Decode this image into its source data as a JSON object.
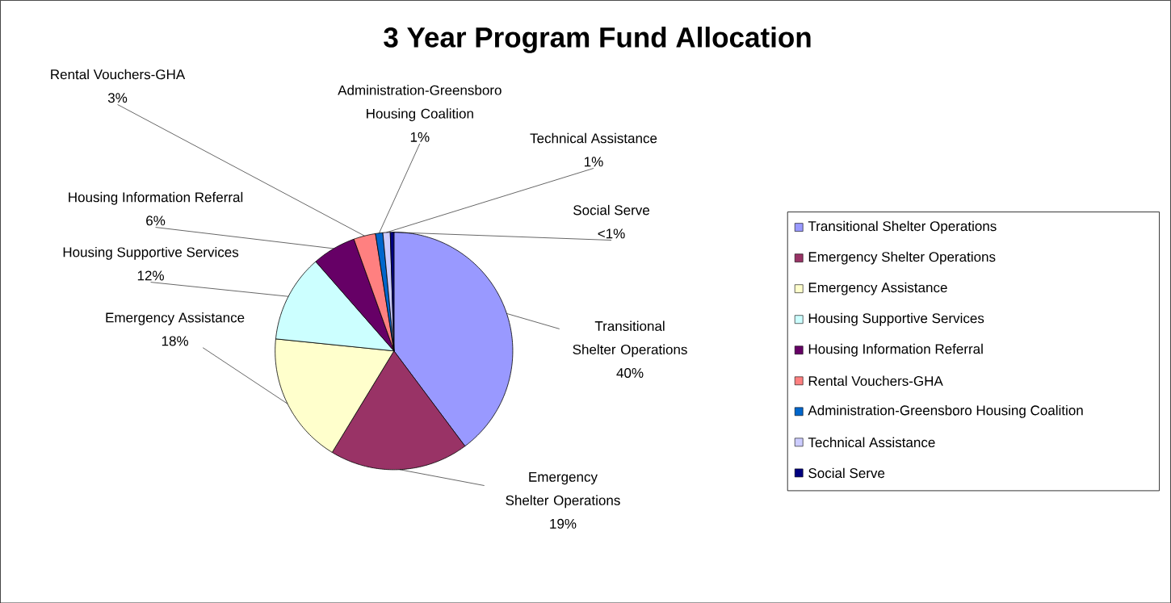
{
  "chart_data": {
    "type": "pie",
    "title": "3 Year Program Fund Allocation",
    "categories": [
      "Transitional Shelter Operations",
      "Emergency Shelter Operations",
      "Emergency Assistance",
      "Housing Supportive Services",
      "Housing Information Referral",
      "Rental Vouchers-GHA",
      "Administration-Greensboro Housing Coalition",
      "Technical Assistance",
      "Social Serve"
    ],
    "values": [
      40,
      19,
      18,
      12,
      6,
      3,
      1,
      1,
      0.5
    ],
    "value_labels": [
      "40%",
      "19%",
      "18%",
      "12%",
      "6%",
      "3%",
      "1%",
      "1%",
      "<1%"
    ],
    "colors": [
      "#9999ff",
      "#993366",
      "#ffffcc",
      "#ccffff",
      "#660066",
      "#ff8080",
      "#0066cc",
      "#ccccff",
      "#000080"
    ],
    "legend": "right"
  }
}
